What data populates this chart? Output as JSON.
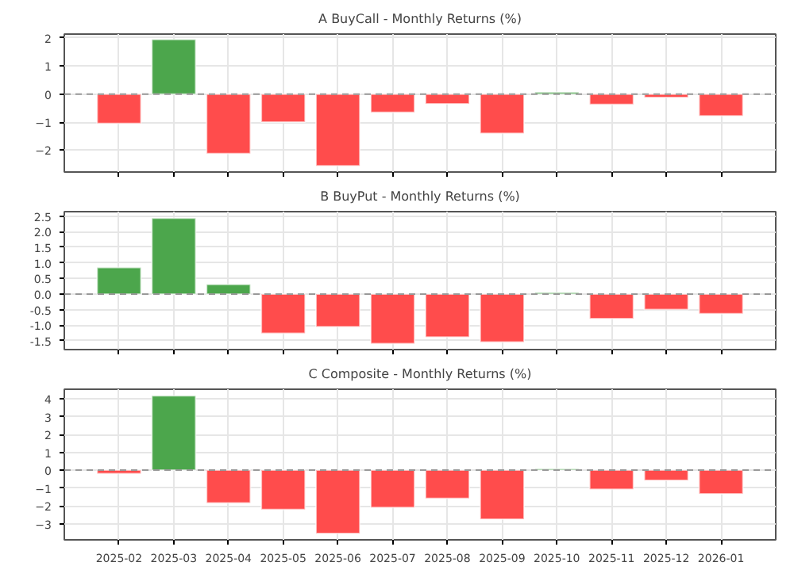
{
  "chart_data": [
    {
      "type": "bar",
      "title": "A BuyCall - Monthly Returns (%)",
      "categories": [
        "2025-02",
        "2025-03",
        "2025-04",
        "2025-05",
        "2025-06",
        "2025-07",
        "2025-08",
        "2025-09",
        "2025-10",
        "2025-11",
        "2025-12",
        "2026-01"
      ],
      "values": [
        -1.05,
        1.95,
        -2.12,
        -1.0,
        -2.56,
        -0.65,
        -0.35,
        -1.4,
        0.07,
        -0.37,
        -0.12,
        -0.78
      ],
      "colors": [
        "#ff4c4c",
        "#4ca64c",
        "#ff4c4c",
        "#ff4c4c",
        "#ff4c4c",
        "#ff4c4c",
        "#ff4c4c",
        "#ff4c4c",
        "#4ca64c",
        "#ff4c4c",
        "#ff4c4c",
        "#ff4c4c"
      ],
      "ylim": [
        -2.78,
        2.14
      ],
      "yticks": [
        -2,
        -1,
        0,
        1,
        2
      ],
      "grid": true,
      "tick_labels": "y",
      "ref_lines": [
        {
          "axis": "y",
          "value": 0,
          "label": null,
          "color": "#999999",
          "line_style": "dashed"
        }
      ]
    },
    {
      "type": "bar",
      "title": "B BuyPut - Monthly Returns (%)",
      "categories": [
        "2025-02",
        "2025-03",
        "2025-04",
        "2025-05",
        "2025-06",
        "2025-07",
        "2025-08",
        "2025-09",
        "2025-10",
        "2025-11",
        "2025-12",
        "2026-01"
      ],
      "values": [
        0.85,
        2.43,
        0.31,
        -1.26,
        -1.05,
        -1.59,
        -1.38,
        -1.54,
        0.05,
        -0.79,
        -0.5,
        -0.63
      ],
      "colors": [
        "#4ca64c",
        "#4ca64c",
        "#4ca64c",
        "#ff4c4c",
        "#ff4c4c",
        "#ff4c4c",
        "#ff4c4c",
        "#ff4c4c",
        "#4ca64c",
        "#ff4c4c",
        "#ff4c4c",
        "#ff4c4c"
      ],
      "ylim": [
        -1.78,
        2.64
      ],
      "yticks": [
        {
          "value": -1.5,
          "label": "-1.5"
        },
        {
          "value": -1,
          "label": "-1.0"
        },
        {
          "value": -0.5,
          "label": "-0.5"
        },
        {
          "value": 0,
          "label": "0.0"
        },
        {
          "value": 0.5,
          "label": "0.5"
        },
        {
          "value": 1,
          "label": "1.0"
        },
        {
          "value": 1.5,
          "label": "1.5"
        },
        {
          "value": 2,
          "label": "2.0"
        },
        {
          "value": 2.5,
          "label": "2.5"
        }
      ],
      "grid": true,
      "tick_labels": "y",
      "ref_lines": [
        {
          "axis": "y",
          "value": 0,
          "label": null,
          "color": "#999999",
          "line_style": "dashed"
        }
      ]
    },
    {
      "type": "bar",
      "title": "C Composite - Monthly Returns (%)",
      "categories": [
        "2025-02",
        "2025-03",
        "2025-04",
        "2025-05",
        "2025-06",
        "2025-07",
        "2025-08",
        "2025-09",
        "2025-10",
        "2025-11",
        "2025-12",
        "2026-01"
      ],
      "values": [
        -0.2,
        4.17,
        -1.84,
        -2.21,
        -3.55,
        -2.1,
        -1.59,
        -2.75,
        0.07,
        -1.08,
        -0.57,
        -1.33
      ],
      "colors": [
        "#ff4c4c",
        "#4ca64c",
        "#ff4c4c",
        "#ff4c4c",
        "#ff4c4c",
        "#ff4c4c",
        "#ff4c4c",
        "#ff4c4c",
        "#4ca64c",
        "#ff4c4c",
        "#ff4c4c",
        "#ff4c4c"
      ],
      "ylim": [
        -3.91,
        4.54
      ],
      "yticks": [
        -3,
        -2,
        -1,
        0,
        1,
        2,
        3,
        4
      ],
      "grid": true,
      "ref_lines": [
        {
          "axis": "y",
          "value": 0,
          "label": null,
          "color": "#999999",
          "line_style": "dashed"
        }
      ]
    }
  ]
}
